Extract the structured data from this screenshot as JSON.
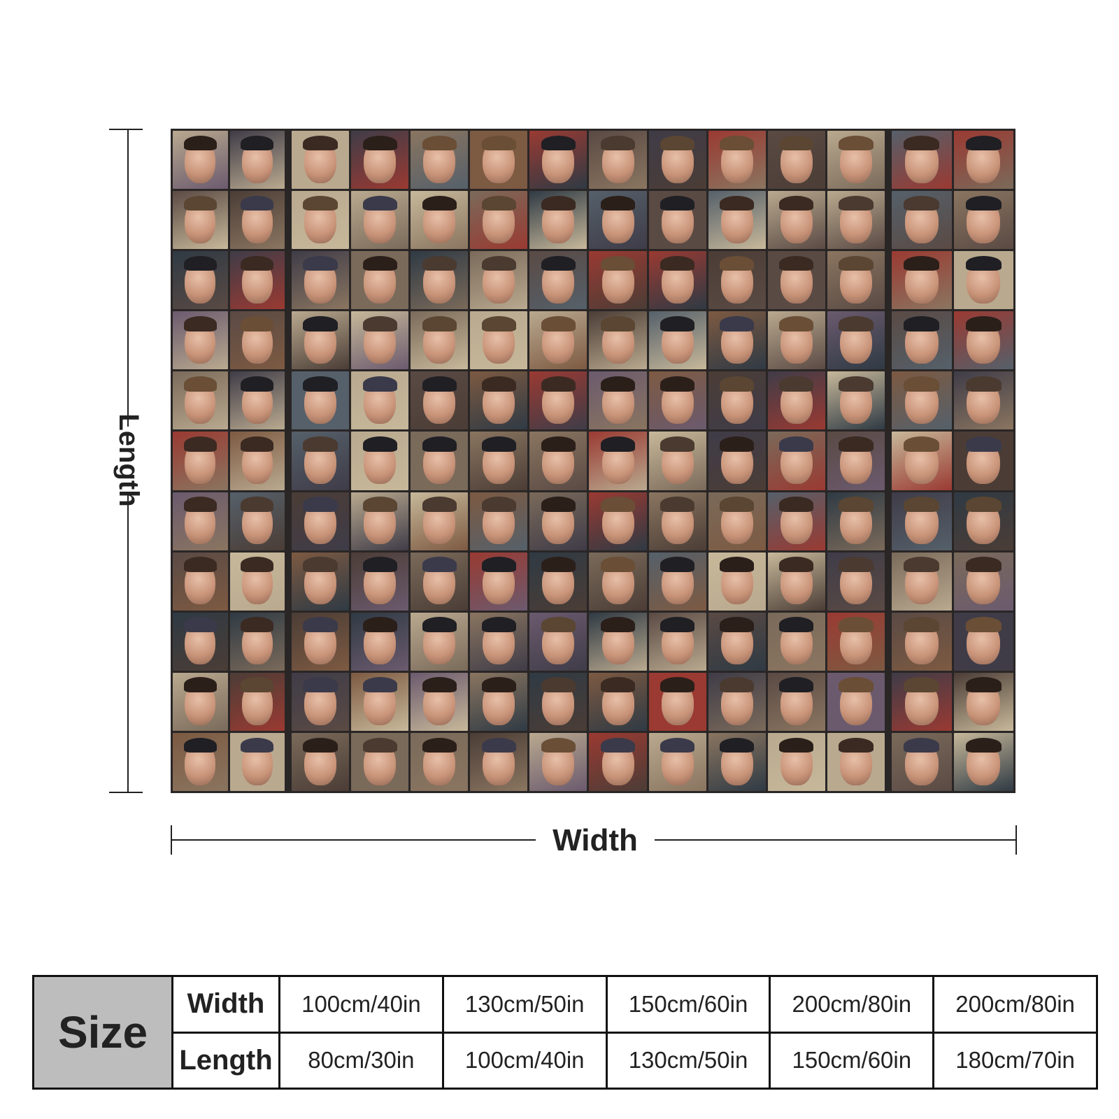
{
  "dimension_labels": {
    "length": "Length",
    "width": "Width"
  },
  "size_table": {
    "title": "Size",
    "width_label": "Width",
    "length_label": "Length",
    "widths": [
      "100cm/40in",
      "130cm/50in",
      "150cm/60in",
      "200cm/80in",
      "200cm/80in"
    ],
    "lengths": [
      "80cm/30in",
      "100cm/40in",
      "130cm/50in",
      "150cm/60in",
      "180cm/70in"
    ]
  },
  "colors": {
    "table_header_bg": "#bdbdbd",
    "blanket_bg": "#2a2626"
  }
}
